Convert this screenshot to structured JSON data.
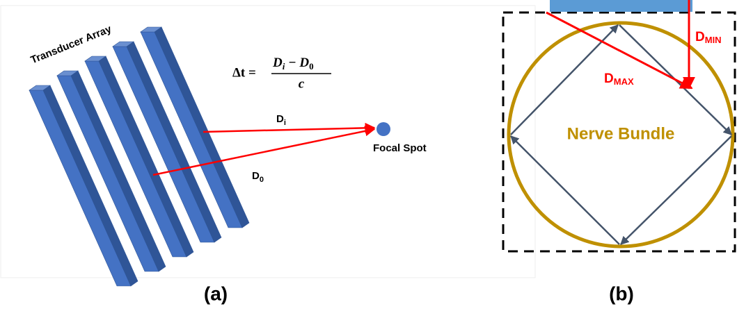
{
  "panel_a": {
    "array_label": "Transducer Array",
    "formula": {
      "lhs": "Δt =",
      "numerator": "D",
      "numerator_sub": "i",
      "numerator_rest": " − D",
      "numerator_rest_sub": "0",
      "denominator": "c"
    },
    "d_i": {
      "main": "D",
      "sub": "i"
    },
    "d_0": {
      "main": "D",
      "sub": "0"
    },
    "focal_label": "Focal Spot",
    "caption": "(a)"
  },
  "panel_b": {
    "d_min": {
      "main": "D",
      "sub": "MIN"
    },
    "d_max": {
      "main": "D",
      "sub": "MAX"
    },
    "nerve_label": "Nerve Bundle",
    "caption": "(b)"
  }
}
